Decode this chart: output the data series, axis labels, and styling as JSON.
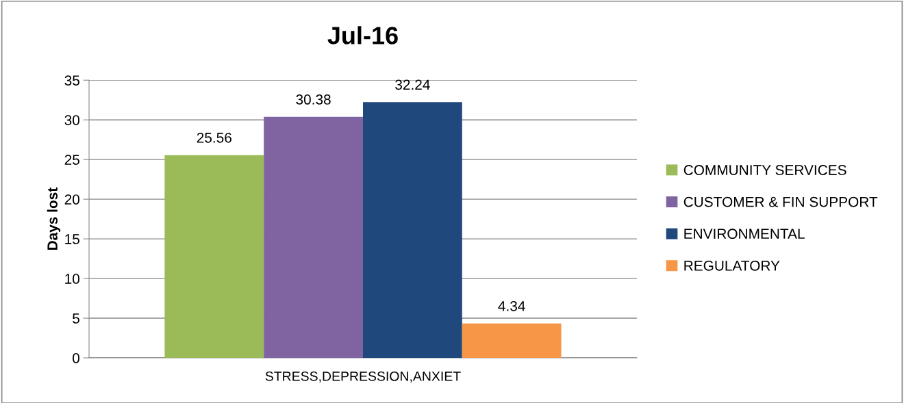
{
  "chart_data": {
    "type": "bar",
    "title": "Jul-16",
    "ylabel": "Days lost",
    "categories": [
      "STRESS,DEPRESSION,ANXIET"
    ],
    "series": [
      {
        "name": "COMMUNITY SERVICES",
        "color": "#9bbb59",
        "values": [
          25.56
        ]
      },
      {
        "name": "CUSTOMER & FIN SUPPORT",
        "color": "#8064a2",
        "values": [
          30.38
        ]
      },
      {
        "name": "ENVIRONMENTAL",
        "color": "#1f497d",
        "values": [
          32.24
        ]
      },
      {
        "name": "REGULATORY",
        "color": "#f79646",
        "values": [
          4.34
        ]
      }
    ],
    "ylim": [
      0,
      35
    ],
    "yticks": [
      0,
      5,
      10,
      15,
      20,
      25,
      30,
      35
    ],
    "grid": "y",
    "legend": "right",
    "data_labels": true
  }
}
